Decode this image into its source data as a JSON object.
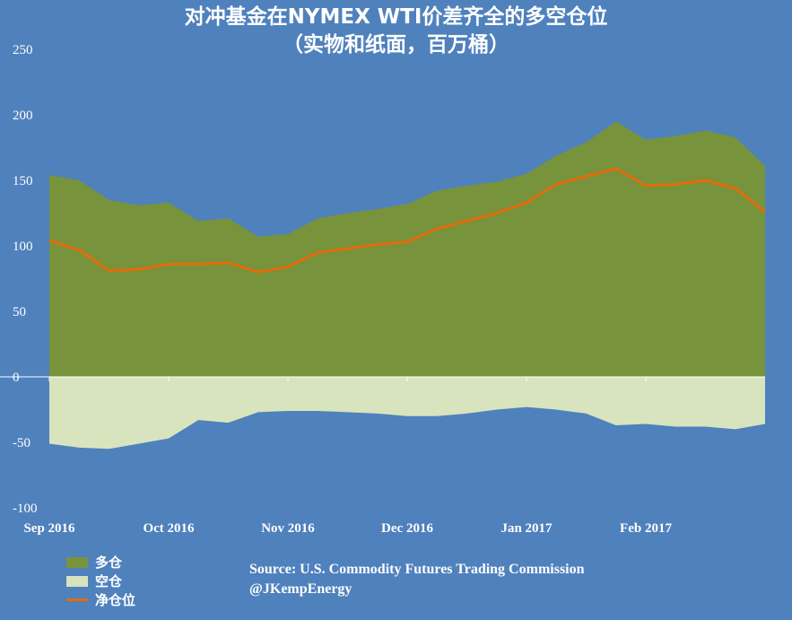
{
  "title_line1": "对冲基金在NYMEX WTI价差齐全的多空仓位",
  "title_line2": "（实物和纸面，百万桶）",
  "source": "Source: U.S. Commodity Futures Trading Commission",
  "credit": "@JKempEnergy",
  "colors": {
    "background": "#4f81bd",
    "long": "#77933c",
    "short": "#d7e4bd",
    "net": "#e46c0a"
  },
  "chart_data": {
    "type": "area",
    "ylim": [
      -100,
      250
    ],
    "yticks": [
      -100,
      -50,
      0,
      50,
      100,
      150,
      200,
      250
    ],
    "x_labels": [
      {
        "label": "Sep 2016",
        "index": 0
      },
      {
        "label": "Oct 2016",
        "index": 4
      },
      {
        "label": "Nov 2016",
        "index": 8
      },
      {
        "label": "Dec 2016",
        "index": 12
      },
      {
        "label": "Jan 2017",
        "index": 16
      },
      {
        "label": "Feb 2017",
        "index": 20
      }
    ],
    "series": [
      {
        "name": "多仓",
        "type": "area",
        "values": [
          154,
          150,
          135,
          131,
          133,
          119,
          121,
          107,
          109,
          121,
          125,
          128,
          132,
          142,
          146,
          149,
          155,
          169,
          179,
          195,
          181,
          184,
          188,
          183,
          161
        ]
      },
      {
        "name": "空仓",
        "type": "area",
        "values": [
          -51,
          -54,
          -55,
          -51,
          -47,
          -33,
          -35,
          -27,
          -26,
          -26,
          -27,
          -28,
          -30,
          -30,
          -28,
          -25,
          -23,
          -25,
          -28,
          -37,
          -36,
          -38,
          -38,
          -40,
          -36
        ]
      },
      {
        "name": "净仓位",
        "type": "line",
        "values": [
          104,
          97,
          81,
          82,
          86,
          86,
          87,
          80,
          84,
          95,
          98,
          101,
          103,
          113,
          119,
          125,
          133,
          147,
          153,
          159,
          146,
          147,
          150,
          144,
          126
        ]
      }
    ],
    "legend": "bottom-left"
  }
}
